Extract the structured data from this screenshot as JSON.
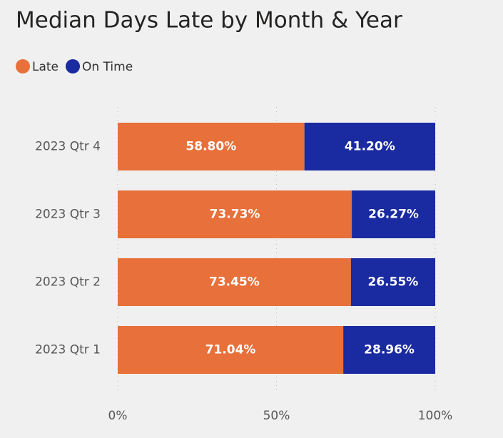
{
  "chart_data": {
    "type": "stacked_bar_horizontal",
    "title": "Median Days Late by Month & Year",
    "categories": [
      "2023 Qtr 4",
      "2023 Qtr 3",
      "2023 Qtr 2",
      "2023 Qtr 1"
    ],
    "series": [
      {
        "name": "Late",
        "color": "#e8703a",
        "values": [
          58.8,
          73.73,
          73.45,
          71.04
        ],
        "value_labels": [
          "58.80%",
          "73.73%",
          "73.45%",
          "71.04%"
        ]
      },
      {
        "name": "On Time",
        "color": "#1a2aa0",
        "values": [
          41.2,
          26.27,
          26.55,
          28.96
        ],
        "value_labels": [
          "41.20%",
          "26.27%",
          "26.55%",
          "28.96%"
        ]
      }
    ],
    "xlim": [
      0,
      100
    ],
    "xticks": [
      {
        "value": 0,
        "label": "0%"
      },
      {
        "value": 50,
        "label": "50%"
      },
      {
        "value": 100,
        "label": "100%"
      }
    ],
    "grid": true,
    "legend": "top-left"
  }
}
